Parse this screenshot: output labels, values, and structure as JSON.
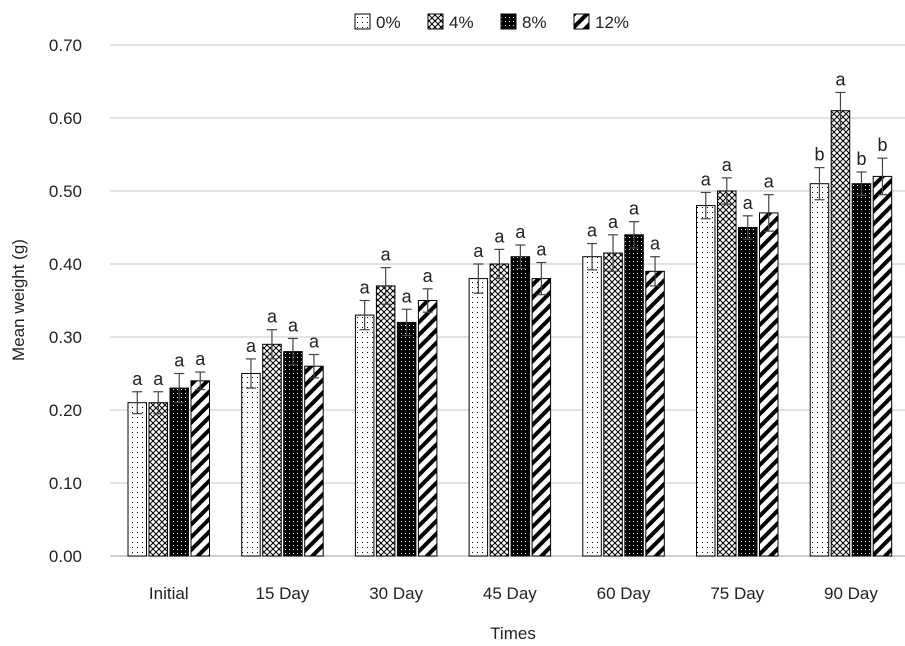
{
  "chart_data": {
    "type": "bar",
    "title": "",
    "xlabel": "Times",
    "ylabel": "Mean weight (g)",
    "ylim": [
      0,
      0.7
    ],
    "y_ticks": [
      "0.00",
      "0.10",
      "0.20",
      "0.30",
      "0.40",
      "0.50",
      "0.60",
      "0.70"
    ],
    "grid": true,
    "legend_position": "top",
    "categories": [
      "Initial",
      "15 Day",
      "30 Day",
      "45 Day",
      "60 Day",
      "75 Day",
      "90 Day"
    ],
    "series": [
      {
        "name": "0%",
        "pattern": "dots-sparse",
        "values": [
          0.21,
          0.25,
          0.33,
          0.38,
          0.41,
          0.48,
          0.51
        ],
        "errors": [
          0.015,
          0.02,
          0.02,
          0.02,
          0.018,
          0.018,
          0.022
        ],
        "letters": [
          "a",
          "a",
          "a",
          "a",
          "a",
          "a",
          "b"
        ]
      },
      {
        "name": "4%",
        "pattern": "crosshatch",
        "values": [
          0.21,
          0.29,
          0.37,
          0.4,
          0.415,
          0.5,
          0.61
        ],
        "errors": [
          0.015,
          0.02,
          0.025,
          0.02,
          0.025,
          0.018,
          0.025
        ],
        "letters": [
          "a",
          "a",
          "a",
          "a",
          "a",
          "a",
          "a"
        ]
      },
      {
        "name": "8%",
        "pattern": "black-dotted",
        "values": [
          0.23,
          0.28,
          0.32,
          0.41,
          0.44,
          0.45,
          0.51
        ],
        "errors": [
          0.02,
          0.018,
          0.018,
          0.016,
          0.018,
          0.016,
          0.016
        ],
        "letters": [
          "a",
          "a",
          "a",
          "a",
          "a",
          "a",
          "b"
        ]
      },
      {
        "name": "12%",
        "pattern": "diagonal-stripes",
        "values": [
          0.24,
          0.26,
          0.35,
          0.38,
          0.39,
          0.47,
          0.52
        ],
        "errors": [
          0.012,
          0.016,
          0.016,
          0.022,
          0.02,
          0.025,
          0.025
        ],
        "letters": [
          "a",
          "a",
          "a",
          "a",
          "a",
          "a",
          "b"
        ]
      }
    ],
    "colors": {
      "gridline": "#d9d9d9",
      "bar_outline": "#000000",
      "text": "#222222"
    }
  }
}
